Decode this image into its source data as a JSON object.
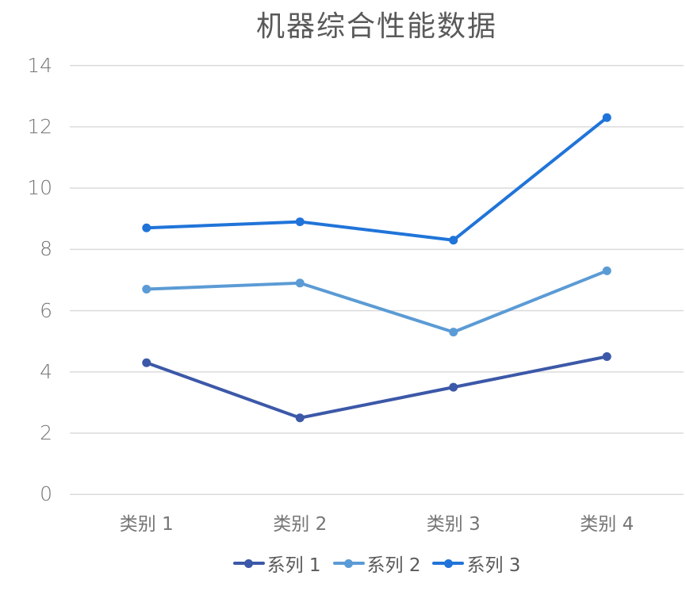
{
  "chart_data": {
    "type": "line",
    "title": "机器综合性能数据",
    "categories": [
      "类别 1",
      "类别 2",
      "类别 3",
      "类别 4"
    ],
    "series": [
      {
        "name": "系列 1",
        "values": [
          4.3,
          2.5,
          3.5,
          4.5
        ],
        "color": "#3C58A8"
      },
      {
        "name": "系列 2",
        "values": [
          6.7,
          6.9,
          5.3,
          7.3
        ],
        "color": "#5B9BD5"
      },
      {
        "name": "系列 3",
        "values": [
          8.7,
          8.9,
          8.3,
          12.3
        ],
        "color": "#2074D9"
      }
    ],
    "xlabel": "",
    "ylabel": "",
    "ylim": [
      0,
      14
    ],
    "y_ticks": [
      "0",
      "2",
      "4",
      "6",
      "8",
      "10",
      "12",
      "14"
    ],
    "grid": true,
    "legend_position": "bottom",
    "marker": "circle"
  },
  "colors": {
    "background": "#FFFFFF",
    "gridline": "#DBDBDB",
    "axis_label": "#757575",
    "title_text": "#595959",
    "legend_text": "#595959"
  }
}
